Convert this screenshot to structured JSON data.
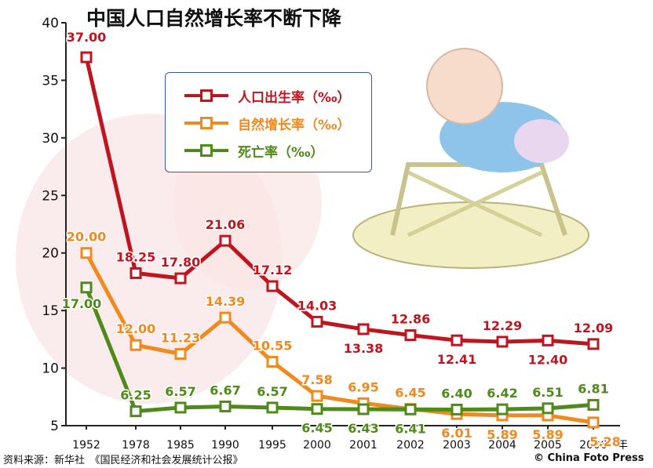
{
  "title": "中国人口自然增长率不断下降",
  "source": "资料来源：新华社　《国民经济和社会发展统计公报》",
  "credit": "© China Foto Press",
  "colors": {
    "birth": "#c0141e",
    "natural": "#f08a1e",
    "death": "#4f8a1a",
    "axis": "#222222"
  },
  "chart_data": {
    "type": "line",
    "title": "中国人口自然增长率不断下降",
    "xlabel": "年",
    "ylabel": "",
    "ylim": [
      5,
      40
    ],
    "yticks": [
      5,
      10,
      15,
      20,
      25,
      30,
      35,
      40
    ],
    "categories": [
      "1952",
      "1978",
      "1985",
      "1990",
      "1995",
      "2000",
      "2001",
      "2002",
      "2003",
      "2004",
      "2005",
      "2006"
    ],
    "legend_position": "top-center",
    "grid": false,
    "series": [
      {
        "name": "人口出生率（‰）",
        "key": "birth",
        "values": [
          37.0,
          18.25,
          17.8,
          21.06,
          17.12,
          14.03,
          13.38,
          12.86,
          12.41,
          12.29,
          12.4,
          12.09
        ],
        "labels": [
          "37.00",
          "18.25",
          "17.80",
          "21.06",
          "17.12",
          "14.03",
          "13.38",
          "12.86",
          "12.41",
          "12.29",
          "12.40",
          "12.09"
        ]
      },
      {
        "name": "自然增长率（‰）",
        "key": "natural",
        "values": [
          20.0,
          12.0,
          11.23,
          14.39,
          10.55,
          7.58,
          6.95,
          6.45,
          6.01,
          5.89,
          5.89,
          5.28
        ],
        "labels": [
          "20.00",
          "12.00",
          "11.23",
          "14.39",
          "10.55",
          "7.58",
          "6.95",
          "6.45",
          "6.01",
          "5.89",
          "5.89",
          "5.28"
        ]
      },
      {
        "name": "死亡率（‰）",
        "key": "death",
        "values": [
          17.0,
          6.25,
          6.57,
          6.67,
          6.57,
          6.45,
          6.43,
          6.41,
          6.4,
          6.42,
          6.51,
          6.81
        ],
        "labels": [
          "17.00",
          "6.25",
          "6.57",
          "6.67",
          "6.57",
          "6.45",
          "6.43",
          "6.41",
          "6.40",
          "6.42",
          "6.51",
          "6.81"
        ]
      }
    ]
  }
}
